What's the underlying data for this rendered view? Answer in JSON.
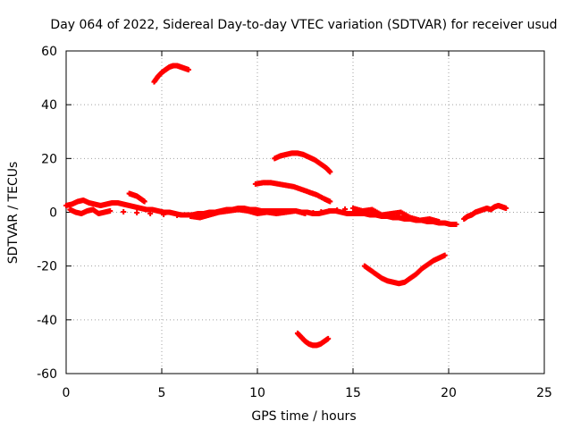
{
  "chart_data": {
    "type": "scatter",
    "title": "Day 064 of 2022, Sidereal Day-to-day VTEC variation (SDTVAR) for receiver usud",
    "xlabel": "GPS time / hours",
    "ylabel": "SDTVAR / TECUs",
    "xlim": [
      0,
      25
    ],
    "ylim": [
      -60,
      60
    ],
    "xticks": [
      0,
      5,
      10,
      15,
      20,
      25
    ],
    "yticks": [
      -60,
      -40,
      -20,
      0,
      20,
      40,
      60
    ],
    "xtick_labels": [
      "0",
      "5",
      "10",
      "15",
      "20",
      "25"
    ],
    "ytick_labels": [
      "-60",
      "-40",
      "-20",
      "0",
      "20",
      "40",
      "60"
    ],
    "grid": true,
    "marker": "plus",
    "color": "#ff0000",
    "series": [
      {
        "name": "main-band-a",
        "x": [
          0.0,
          0.3,
          0.6,
          0.9,
          1.2,
          1.5,
          1.8,
          2.1,
          2.4,
          2.7,
          3.0,
          3.3,
          3.6,
          3.9,
          4.2,
          4.5,
          4.8,
          5.1,
          5.4,
          5.7,
          6.0,
          6.3,
          6.6,
          6.9,
          7.2,
          7.5,
          7.8,
          8.1,
          8.4,
          8.7,
          9.0,
          9.3,
          9.6,
          9.9,
          10.2,
          10.5,
          10.8,
          11.1,
          11.4,
          11.7,
          12.0,
          12.3,
          12.6,
          12.9,
          13.2,
          13.5,
          13.8,
          14.1,
          14.4,
          14.7,
          15.0,
          15.3,
          15.6,
          15.9,
          16.2,
          16.5,
          16.8,
          17.1,
          17.4,
          17.7,
          18.0,
          18.3,
          18.6,
          18.9,
          19.2,
          19.5,
          19.8,
          20.1,
          20.4
        ],
        "y": [
          2.5,
          3.0,
          4.0,
          4.5,
          3.5,
          3.0,
          2.5,
          3.0,
          3.5,
          3.5,
          3.0,
          2.5,
          2.0,
          1.5,
          1.0,
          1.0,
          0.5,
          0.0,
          0.0,
          -0.5,
          -1.0,
          -1.0,
          -1.0,
          -0.5,
          -0.5,
          0.0,
          0.0,
          0.5,
          1.0,
          1.0,
          1.5,
          1.5,
          1.0,
          1.0,
          0.5,
          0.5,
          0.5,
          0.5,
          0.5,
          0.5,
          0.5,
          0.0,
          0.0,
          -0.5,
          -0.5,
          0.0,
          0.5,
          0.5,
          0.0,
          -0.5,
          -0.5,
          -0.5,
          -0.5,
          -1.0,
          -1.0,
          -1.5,
          -1.5,
          -2.0,
          -2.0,
          -2.5,
          -2.5,
          -3.0,
          -3.0,
          -3.5,
          -3.5,
          -4.0,
          -4.0,
          -4.5,
          -4.5
        ]
      },
      {
        "name": "main-band-b",
        "x": [
          0.2,
          0.5,
          0.8,
          1.1,
          1.4,
          1.7,
          2.0,
          2.3,
          6.5,
          7.0,
          7.5,
          8.0,
          8.5,
          9.0,
          9.5,
          10.0,
          10.5,
          11.0,
          11.5,
          12.0,
          12.5,
          15.0,
          15.5,
          16.0,
          16.5,
          17.0,
          17.5,
          18.0,
          18.5,
          19.0,
          19.5
        ],
        "y": [
          1.0,
          0.0,
          -0.5,
          0.5,
          1.0,
          -0.5,
          0.0,
          0.5,
          -1.5,
          -2.0,
          -1.0,
          0.0,
          0.5,
          1.0,
          0.5,
          -0.5,
          0.0,
          -0.5,
          0.0,
          0.5,
          -0.5,
          1.5,
          0.5,
          1.0,
          -1.0,
          -0.5,
          0.0,
          -2.0,
          -3.0,
          -2.5,
          -3.5
        ]
      },
      {
        "name": "tail-end",
        "x": [
          20.8,
          21.0,
          21.2,
          21.4,
          21.6,
          21.8,
          22.0,
          22.2,
          22.4,
          22.6,
          22.8,
          23.0
        ],
        "y": [
          -2.5,
          -1.5,
          -1.0,
          0.0,
          0.5,
          1.0,
          1.5,
          1.0,
          2.0,
          2.5,
          2.0,
          1.5
        ]
      },
      {
        "name": "arc-3.6h",
        "x": [
          3.3,
          3.5,
          3.7,
          3.9,
          4.1
        ],
        "y": [
          7.0,
          6.5,
          6.0,
          5.0,
          4.0
        ]
      },
      {
        "name": "arc-5h",
        "x": [
          4.6,
          4.8,
          5.0,
          5.2,
          5.4,
          5.6,
          5.8,
          6.0,
          6.2,
          6.4
        ],
        "y": [
          48.5,
          50.5,
          52.0,
          53.0,
          54.0,
          54.5,
          54.5,
          54.0,
          53.5,
          53.0
        ]
      },
      {
        "name": "arc-11h-high",
        "x": [
          10.9,
          11.2,
          11.5,
          11.8,
          12.1,
          12.4,
          12.7,
          13.0,
          13.3,
          13.6,
          13.8
        ],
        "y": [
          20.0,
          21.0,
          21.5,
          22.0,
          22.0,
          21.5,
          20.5,
          19.5,
          18.0,
          16.5,
          15.0
        ]
      },
      {
        "name": "arc-11h-mid",
        "x": [
          9.9,
          10.3,
          10.7,
          11.1,
          11.5,
          11.9,
          12.3,
          12.7,
          13.1,
          13.5,
          13.8
        ],
        "y": [
          10.5,
          11.0,
          11.0,
          10.5,
          10.0,
          9.5,
          8.5,
          7.5,
          6.5,
          5.0,
          4.0
        ]
      },
      {
        "name": "arc-13h-low",
        "x": [
          12.1,
          12.3,
          12.5,
          12.7,
          12.9,
          13.1,
          13.3,
          13.5,
          13.7
        ],
        "y": [
          -45.0,
          -46.5,
          -48.0,
          -49.0,
          -49.5,
          -49.5,
          -49.0,
          -48.0,
          -47.0
        ]
      },
      {
        "name": "arc-17h-low",
        "x": [
          15.6,
          15.9,
          16.2,
          16.5,
          16.8,
          17.1,
          17.4,
          17.7,
          18.0,
          18.3,
          18.6,
          18.9,
          19.2,
          19.5,
          19.8
        ],
        "y": [
          -20.0,
          -21.5,
          -23.0,
          -24.5,
          -25.5,
          -26.0,
          -26.5,
          -26.0,
          -24.5,
          -23.0,
          -21.0,
          -19.5,
          -18.0,
          -17.0,
          -16.0
        ]
      }
    ]
  }
}
